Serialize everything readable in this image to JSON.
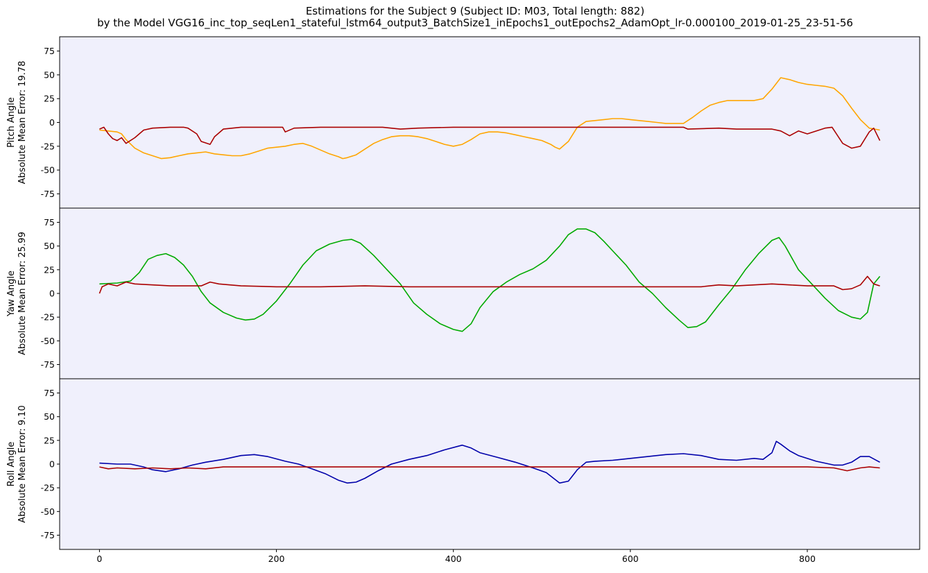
{
  "title": {
    "line1": "Estimations for the Subject 9 (Subject ID: M03, Total length: 882)",
    "line2": "by the Model VGG16_inc_top_seqLen1_stateful_lstm64_output3_BatchSize1_inEpochs1_outEpochs2_AdamOpt_lr-0.000100_2019-01-25_23-51-56"
  },
  "colors": {
    "panel_bg": "#f0f0fc",
    "prediction": "#aa0000",
    "pitch_truth": "#ffa500",
    "yaw_truth": "#00aa00",
    "roll_truth": "#0000aa"
  },
  "chart_data": [
    {
      "type": "line",
      "ylabel_line1": "Pitch Angle",
      "ylabel_line2": "Absolute Mean Error: 19.78",
      "xlim": [
        -45,
        927
      ],
      "ylim": [
        -90,
        90
      ],
      "yticks": [
        75,
        50,
        25,
        0,
        -25,
        -50,
        -75
      ],
      "xticks": [],
      "series": [
        {
          "color_key": "pitch_truth",
          "x": [
            0,
            10,
            20,
            25,
            30,
            40,
            50,
            60,
            70,
            80,
            90,
            100,
            110,
            120,
            130,
            140,
            150,
            160,
            170,
            180,
            190,
            200,
            210,
            220,
            230,
            240,
            250,
            260,
            270,
            275,
            280,
            290,
            300,
            310,
            320,
            330,
            340,
            350,
            360,
            370,
            380,
            390,
            400,
            410,
            420,
            430,
            440,
            450,
            460,
            470,
            480,
            490,
            500,
            510,
            515,
            520,
            530,
            540,
            550,
            560,
            570,
            580,
            590,
            600,
            610,
            620,
            630,
            640,
            650,
            660,
            670,
            680,
            690,
            700,
            710,
            720,
            730,
            740,
            750,
            755,
            760,
            770,
            780,
            790,
            800,
            810,
            820,
            830,
            840,
            850,
            860,
            870,
            882
          ],
          "values": [
            -8,
            -9,
            -10,
            -12,
            -18,
            -27,
            -32,
            -35,
            -38,
            -37,
            -35,
            -33,
            -32,
            -31,
            -33,
            -34,
            -35,
            -35,
            -33,
            -30,
            -27,
            -26,
            -25,
            -23,
            -22,
            -25,
            -29,
            -33,
            -36,
            -38,
            -37,
            -34,
            -28,
            -22,
            -18,
            -15,
            -14,
            -14,
            -15,
            -17,
            -20,
            -23,
            -25,
            -23,
            -18,
            -12,
            -10,
            -10,
            -11,
            -13,
            -15,
            -17,
            -19,
            -23,
            -26,
            -28,
            -20,
            -5,
            1,
            2,
            3,
            4,
            4,
            3,
            2,
            1,
            0,
            -1,
            -1,
            -1,
            5,
            12,
            18,
            21,
            23,
            23,
            23,
            23,
            25,
            30,
            35,
            47,
            45,
            42,
            40,
            39,
            38,
            36,
            28,
            15,
            3,
            -6,
            -8
          ]
        },
        {
          "color_key": "prediction",
          "x": [
            0,
            5,
            10,
            15,
            20,
            25,
            30,
            40,
            50,
            60,
            80,
            95,
            100,
            110,
            115,
            125,
            130,
            140,
            160,
            200,
            207,
            210,
            220,
            250,
            300,
            320,
            340,
            360,
            400,
            500,
            550,
            590,
            600,
            660,
            665,
            700,
            720,
            760,
            770,
            780,
            790,
            800,
            820,
            828,
            840,
            850,
            860,
            870,
            875,
            882
          ],
          "values": [
            -7,
            -5,
            -12,
            -17,
            -19,
            -16,
            -22,
            -16,
            -8,
            -6,
            -5,
            -5,
            -6,
            -12,
            -20,
            -23,
            -15,
            -7,
            -5,
            -5,
            -5,
            -10,
            -6,
            -5,
            -5,
            -5,
            -7,
            -6,
            -5,
            -5,
            -5,
            -5,
            -5,
            -5,
            -7,
            -6,
            -7,
            -7,
            -9,
            -14,
            -9,
            -12,
            -6,
            -5,
            -22,
            -27,
            -25,
            -10,
            -6,
            -19
          ]
        }
      ]
    },
    {
      "type": "line",
      "ylabel_line1": "Yaw Angle",
      "ylabel_line2": "Absolute Mean Error: 25.99",
      "xlim": [
        -45,
        927
      ],
      "ylim": [
        -90,
        90
      ],
      "yticks": [
        75,
        50,
        25,
        0,
        -25,
        -50,
        -75
      ],
      "xticks": [],
      "series": [
        {
          "color_key": "yaw_truth",
          "x": [
            0,
            20,
            35,
            45,
            55,
            65,
            75,
            85,
            95,
            105,
            115,
            125,
            140,
            155,
            165,
            175,
            185,
            200,
            215,
            230,
            245,
            260,
            275,
            285,
            295,
            310,
            325,
            340,
            355,
            370,
            385,
            400,
            410,
            420,
            430,
            445,
            460,
            475,
            490,
            505,
            520,
            530,
            540,
            550,
            560,
            570,
            580,
            595,
            610,
            625,
            640,
            655,
            665,
            675,
            685,
            700,
            715,
            730,
            745,
            760,
            768,
            775,
            790,
            805,
            820,
            835,
            850,
            860,
            868,
            875,
            882
          ],
          "values": [
            10,
            11,
            13,
            22,
            36,
            40,
            42,
            38,
            30,
            18,
            2,
            -10,
            -20,
            -26,
            -28,
            -27,
            -22,
            -8,
            10,
            30,
            45,
            52,
            56,
            57,
            53,
            40,
            25,
            10,
            -10,
            -22,
            -32,
            -38,
            -40,
            -32,
            -15,
            2,
            12,
            20,
            26,
            35,
            50,
            62,
            68,
            68,
            64,
            55,
            45,
            30,
            12,
            0,
            -15,
            -28,
            -36,
            -35,
            -30,
            -12,
            5,
            25,
            42,
            56,
            59,
            50,
            25,
            10,
            -5,
            -18,
            -25,
            -27,
            -20,
            10,
            18
          ]
        },
        {
          "color_key": "prediction",
          "x": [
            0,
            3,
            10,
            20,
            30,
            40,
            60,
            80,
            100,
            115,
            125,
            135,
            160,
            200,
            250,
            300,
            350,
            400,
            500,
            600,
            650,
            680,
            700,
            720,
            760,
            780,
            800,
            830,
            840,
            850,
            860,
            868,
            875,
            882
          ],
          "values": [
            0,
            7,
            10,
            8,
            12,
            10,
            9,
            8,
            8,
            8,
            12,
            10,
            8,
            7,
            7,
            8,
            7,
            7,
            7,
            7,
            7,
            7,
            9,
            8,
            10,
            9,
            8,
            8,
            4,
            5,
            9,
            18,
            10,
            8
          ]
        }
      ]
    },
    {
      "type": "line",
      "ylabel_line1": "Roll Angle",
      "ylabel_line2": "Absolute Mean Error: 9.10",
      "xlim": [
        -45,
        927
      ],
      "ylim": [
        -90,
        90
      ],
      "yticks": [
        75,
        50,
        25,
        0,
        -25,
        -50,
        -75
      ],
      "xticks": [
        0,
        200,
        400,
        600,
        800
      ],
      "series": [
        {
          "color_key": "roll_truth",
          "x": [
            0,
            20,
            35,
            50,
            60,
            75,
            90,
            105,
            120,
            140,
            160,
            175,
            190,
            210,
            225,
            240,
            255,
            270,
            280,
            290,
            300,
            315,
            330,
            350,
            370,
            390,
            410,
            420,
            430,
            450,
            470,
            490,
            505,
            520,
            530,
            540,
            550,
            560,
            580,
            600,
            620,
            640,
            660,
            680,
            700,
            720,
            740,
            750,
            760,
            765,
            770,
            780,
            790,
            810,
            830,
            840,
            850,
            860,
            870,
            882
          ],
          "values": [
            1,
            0,
            0,
            -3,
            -6,
            -8,
            -5,
            -1,
            2,
            5,
            9,
            10,
            8,
            3,
            0,
            -5,
            -10,
            -17,
            -20,
            -19,
            -15,
            -7,
            0,
            5,
            9,
            15,
            20,
            17,
            12,
            7,
            2,
            -4,
            -9,
            -20,
            -18,
            -6,
            2,
            3,
            4,
            6,
            8,
            10,
            11,
            9,
            5,
            4,
            6,
            5,
            12,
            24,
            21,
            14,
            9,
            3,
            -1,
            -1,
            2,
            8,
            8,
            2
          ]
        },
        {
          "color_key": "prediction",
          "x": [
            0,
            10,
            20,
            40,
            60,
            80,
            100,
            120,
            140,
            160,
            200,
            300,
            400,
            500,
            600,
            650,
            700,
            760,
            780,
            800,
            830,
            845,
            860,
            870,
            882
          ],
          "values": [
            -3,
            -5,
            -4,
            -5,
            -4,
            -5,
            -4,
            -5,
            -3,
            -3,
            -3,
            -3,
            -3,
            -3,
            -3,
            -3,
            -3,
            -3,
            -3,
            -3,
            -4,
            -7,
            -4,
            -3,
            -4
          ]
        }
      ]
    }
  ]
}
